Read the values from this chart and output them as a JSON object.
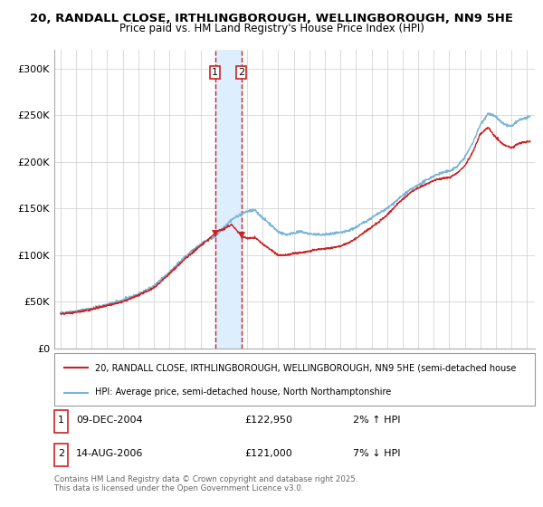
{
  "title_line1": "20, RANDALL CLOSE, IRTHLINGBOROUGH, WELLINGBOROUGH, NN9 5HE",
  "title_line2": "Price paid vs. HM Land Registry's House Price Index (HPI)",
  "ylim": [
    0,
    320000
  ],
  "yticks": [
    0,
    50000,
    100000,
    150000,
    200000,
    250000,
    300000
  ],
  "ytick_labels": [
    "£0",
    "£50K",
    "£100K",
    "£150K",
    "£200K",
    "£250K",
    "£300K"
  ],
  "hpi_color": "#7ab4d8",
  "price_color": "#cc2222",
  "background_color": "#ffffff",
  "grid_color": "#cccccc",
  "highlight_color": "#ddeeff",
  "vline_color": "#cc2222",
  "transaction1_date": 2004.94,
  "transaction1_price": 122950,
  "transaction2_date": 2006.62,
  "transaction2_price": 121000,
  "legend_line1": "20, RANDALL CLOSE, IRTHLINGBOROUGH, WELLINGBOROUGH, NN9 5HE (semi-detached house",
  "legend_line2": "HPI: Average price, semi-detached house, North Northamptonshire",
  "label1_date": "09-DEC-2004",
  "label1_price": "£122,950",
  "label1_hpi": "2% ↑ HPI",
  "label2_date": "14-AUG-2006",
  "label2_price": "£121,000",
  "label2_hpi": "7% ↓ HPI",
  "footnote": "Contains HM Land Registry data © Crown copyright and database right 2025.\nThis data is licensed under the Open Government Licence v3.0."
}
